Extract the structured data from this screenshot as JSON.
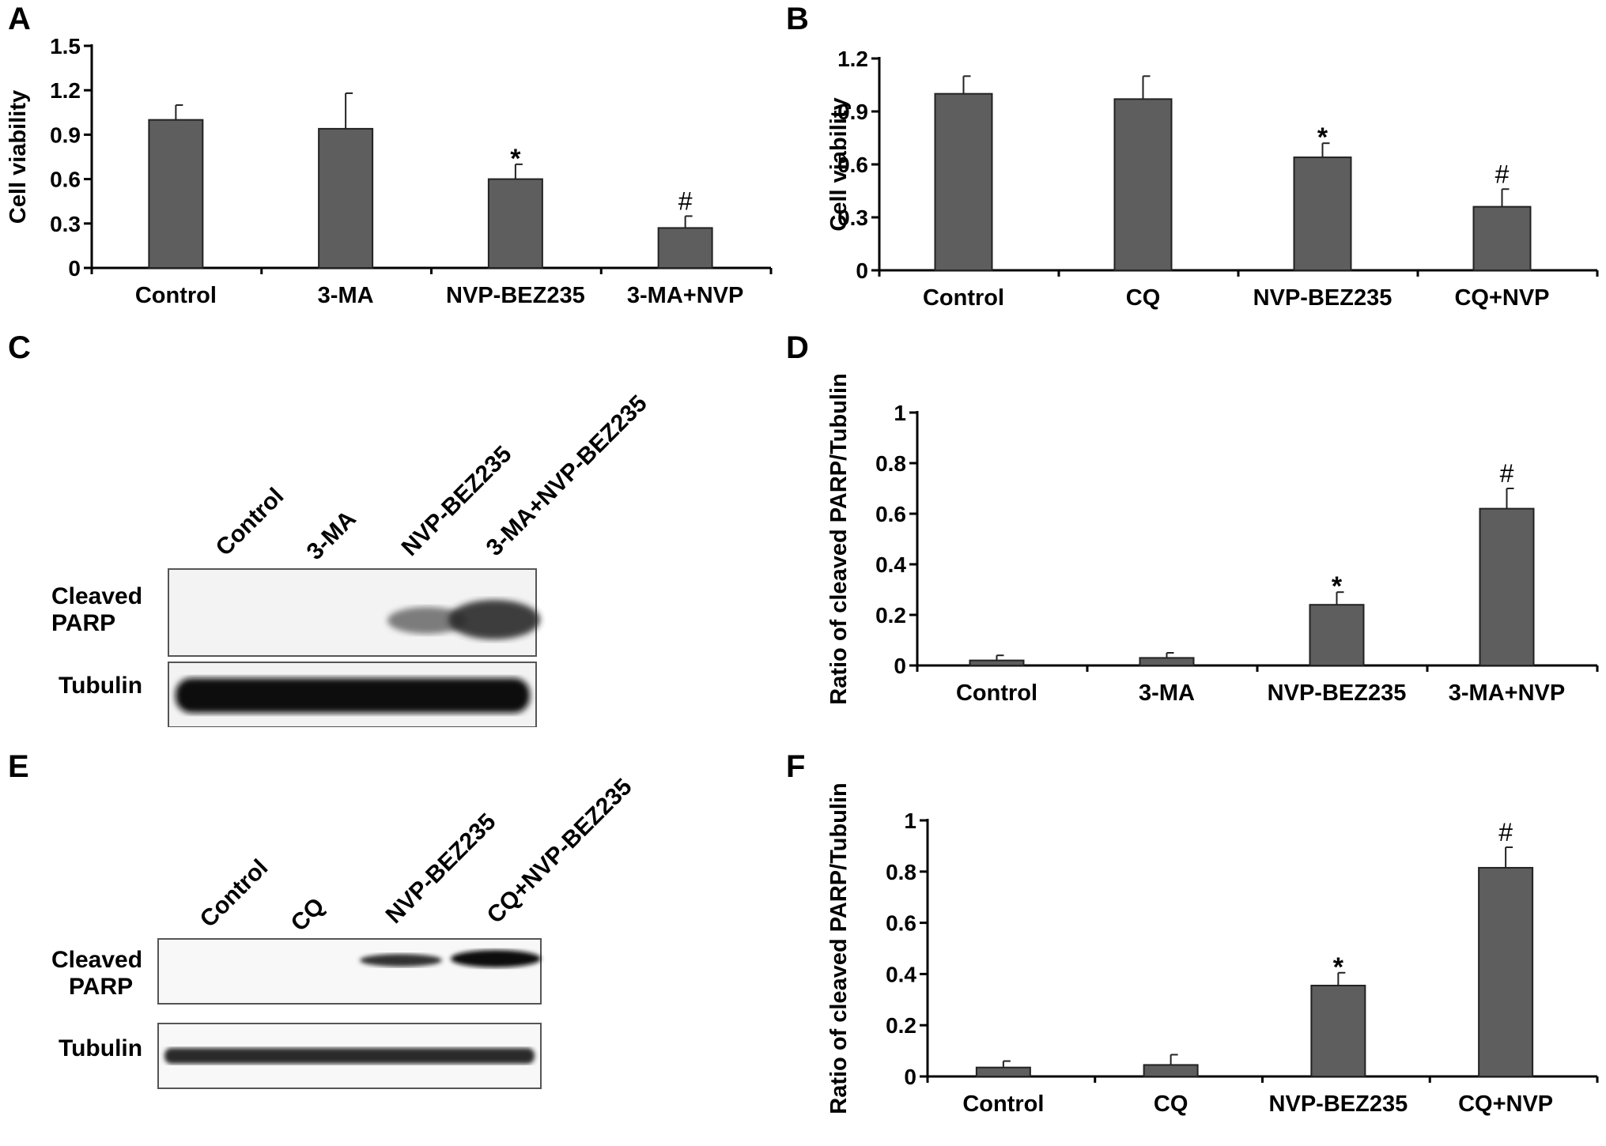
{
  "panels": [
    {
      "letter": "A"
    },
    {
      "letter": "B"
    },
    {
      "letter": "C"
    },
    {
      "letter": "D"
    },
    {
      "letter": "E"
    },
    {
      "letter": "F"
    }
  ],
  "chart_data": [
    {
      "panel": "A",
      "type": "bar",
      "categories": [
        "Control",
        "3-MA",
        "NVP-BEZ235",
        "3-MA+NVP"
      ],
      "values": [
        1.0,
        0.94,
        0.6,
        0.27
      ],
      "errors": [
        0.1,
        0.24,
        0.1,
        0.08
      ],
      "markers": [
        "",
        "",
        "*",
        "#"
      ],
      "ylabel": "Cell viability",
      "yticks": [
        "0",
        "0.3",
        "0.6",
        "0.9",
        "1.2",
        "1.5"
      ],
      "ylim": [
        0,
        1.5
      ],
      "bar_color": "#5e5e5e"
    },
    {
      "panel": "B",
      "type": "bar",
      "categories": [
        "Control",
        "CQ",
        "NVP-BEZ235",
        "CQ+NVP"
      ],
      "values": [
        1.0,
        0.97,
        0.64,
        0.36
      ],
      "errors": [
        0.1,
        0.13,
        0.08,
        0.1
      ],
      "markers": [
        "",
        "",
        "*",
        "#"
      ],
      "ylabel": "Cell viability",
      "yticks": [
        "0",
        "0.3",
        "0.6",
        "0.9",
        "1.2"
      ],
      "ylim": [
        0,
        1.2
      ],
      "bar_color": "#5e5e5e"
    },
    {
      "panel": "D",
      "type": "bar",
      "categories": [
        "Control",
        "3-MA",
        "NVP-BEZ235",
        "3-MA+NVP"
      ],
      "values": [
        0.02,
        0.03,
        0.24,
        0.62
      ],
      "errors": [
        0.02,
        0.02,
        0.05,
        0.08
      ],
      "markers": [
        "",
        "",
        "*",
        "#"
      ],
      "ylabel": "Ratio of cleaved PARP/Tubulin",
      "yticks": [
        "0",
        "0.2",
        "0.4",
        "0.6",
        "0.8",
        "1"
      ],
      "ylim": [
        0,
        1
      ],
      "bar_color": "#5e5e5e"
    },
    {
      "panel": "F",
      "type": "bar",
      "categories": [
        "Control",
        "CQ",
        "NVP-BEZ235",
        "CQ+NVP"
      ],
      "values": [
        0.035,
        0.045,
        0.355,
        0.815
      ],
      "errors": [
        0.025,
        0.04,
        0.05,
        0.08
      ],
      "markers": [
        "",
        "",
        "*",
        "#"
      ],
      "ylabel": "Ratio of cleaved PARP/Tubulin",
      "yticks": [
        "0",
        "0.2",
        "0.4",
        "0.6",
        "0.8",
        "1"
      ],
      "ylim": [
        0,
        1
      ],
      "bar_color": "#5e5e5e"
    }
  ],
  "blots": [
    {
      "panel": "C",
      "lanes": [
        "Control",
        "3-MA",
        "NVP-BEZ235",
        "3-MA+NVP-BEZ235"
      ],
      "rows": [
        {
          "label_line1": "Cleaved",
          "label_line2": "PARP"
        },
        {
          "label_line1": "Tubulin",
          "label_line2": ""
        }
      ]
    },
    {
      "panel": "E",
      "lanes": [
        "Control",
        "CQ",
        "NVP-BEZ235",
        "CQ+NVP-BEZ235"
      ],
      "rows": [
        {
          "label_line1": "Cleaved",
          "label_line2": "PARP"
        },
        {
          "label_line1": "Tubulin",
          "label_line2": ""
        }
      ]
    }
  ]
}
